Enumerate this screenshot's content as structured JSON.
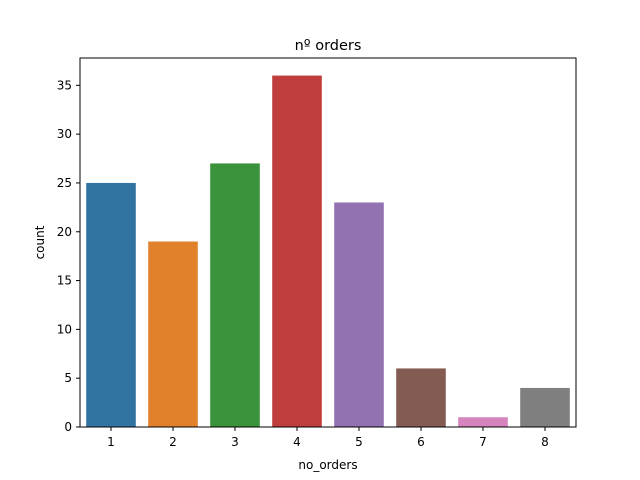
{
  "chart_data": {
    "type": "bar",
    "title": "nº orders",
    "xlabel": "no_orders",
    "ylabel": "count",
    "categories": [
      "1",
      "2",
      "3",
      "4",
      "5",
      "6",
      "7",
      "8"
    ],
    "values": [
      25,
      19,
      27,
      36,
      23,
      6,
      1,
      4
    ],
    "colors": [
      "#3274a1",
      "#e1812c",
      "#3a923a",
      "#c03d3e",
      "#9372b2",
      "#845b53",
      "#d684bd",
      "#7f7f7f"
    ],
    "ylim": [
      0,
      37.8
    ],
    "yticks": [
      0,
      5,
      10,
      15,
      20,
      25,
      30,
      35
    ],
    "grid": false,
    "legend": "none"
  }
}
